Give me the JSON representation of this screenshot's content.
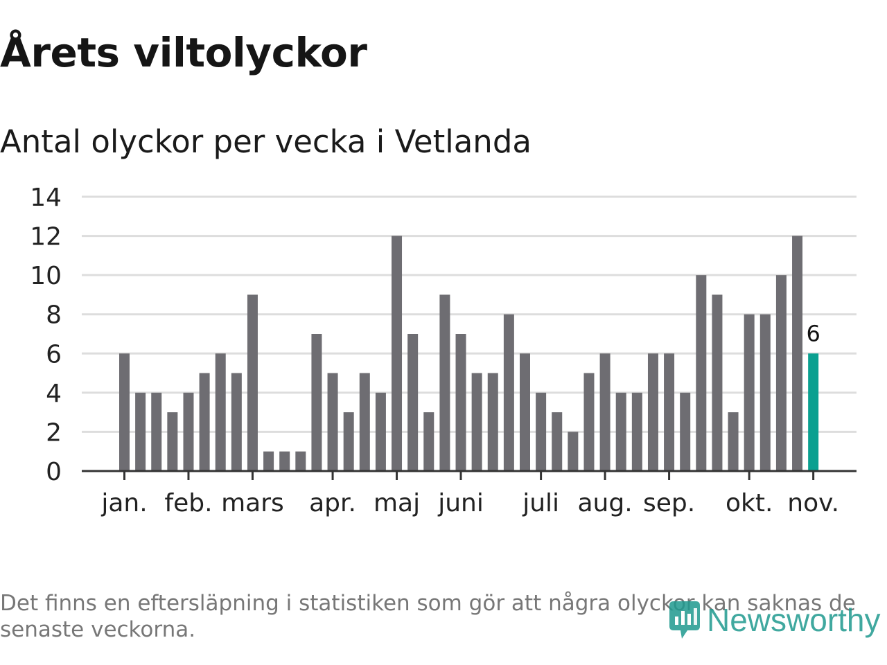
{
  "header": {
    "title": "Årets viltolyckor",
    "subtitle": "Antal olyckor per vecka i Vetlanda"
  },
  "chart_data": {
    "type": "bar",
    "title": "Årets viltolyckor",
    "subtitle": "Antal olyckor per vecka i Vetlanda",
    "xlabel": "",
    "ylabel": "",
    "ylim": [
      0,
      14
    ],
    "yticks": [
      0,
      2,
      4,
      6,
      8,
      10,
      12,
      14
    ],
    "grid": true,
    "values": [
      6,
      4,
      4,
      3,
      4,
      5,
      6,
      5,
      9,
      1,
      1,
      1,
      7,
      5,
      3,
      5,
      4,
      12,
      7,
      3,
      9,
      7,
      5,
      5,
      8,
      6,
      4,
      3,
      2,
      5,
      6,
      4,
      4,
      6,
      6,
      4,
      10,
      9,
      3,
      8,
      8,
      10,
      12,
      6
    ],
    "month_ticks": [
      {
        "label": "jan.",
        "week_index": 0
      },
      {
        "label": "feb.",
        "week_index": 4
      },
      {
        "label": "mars",
        "week_index": 8
      },
      {
        "label": "apr.",
        "week_index": 13
      },
      {
        "label": "maj",
        "week_index": 17
      },
      {
        "label": "juni",
        "week_index": 21
      },
      {
        "label": "juli",
        "week_index": 26
      },
      {
        "label": "aug.",
        "week_index": 30
      },
      {
        "label": "sep.",
        "week_index": 34
      },
      {
        "label": "okt.",
        "week_index": 39
      },
      {
        "label": "nov.",
        "week_index": 43
      }
    ],
    "highlight_index": 43,
    "highlight_label": "6",
    "bar_color": "#6e6d72",
    "highlight_color": "#0aa090"
  },
  "footer": {
    "note": "Det finns en eftersläpning i statistiken som gör att några olyckor kan saknas de senaste veckorna.",
    "logo_text": "Newsworthy"
  }
}
